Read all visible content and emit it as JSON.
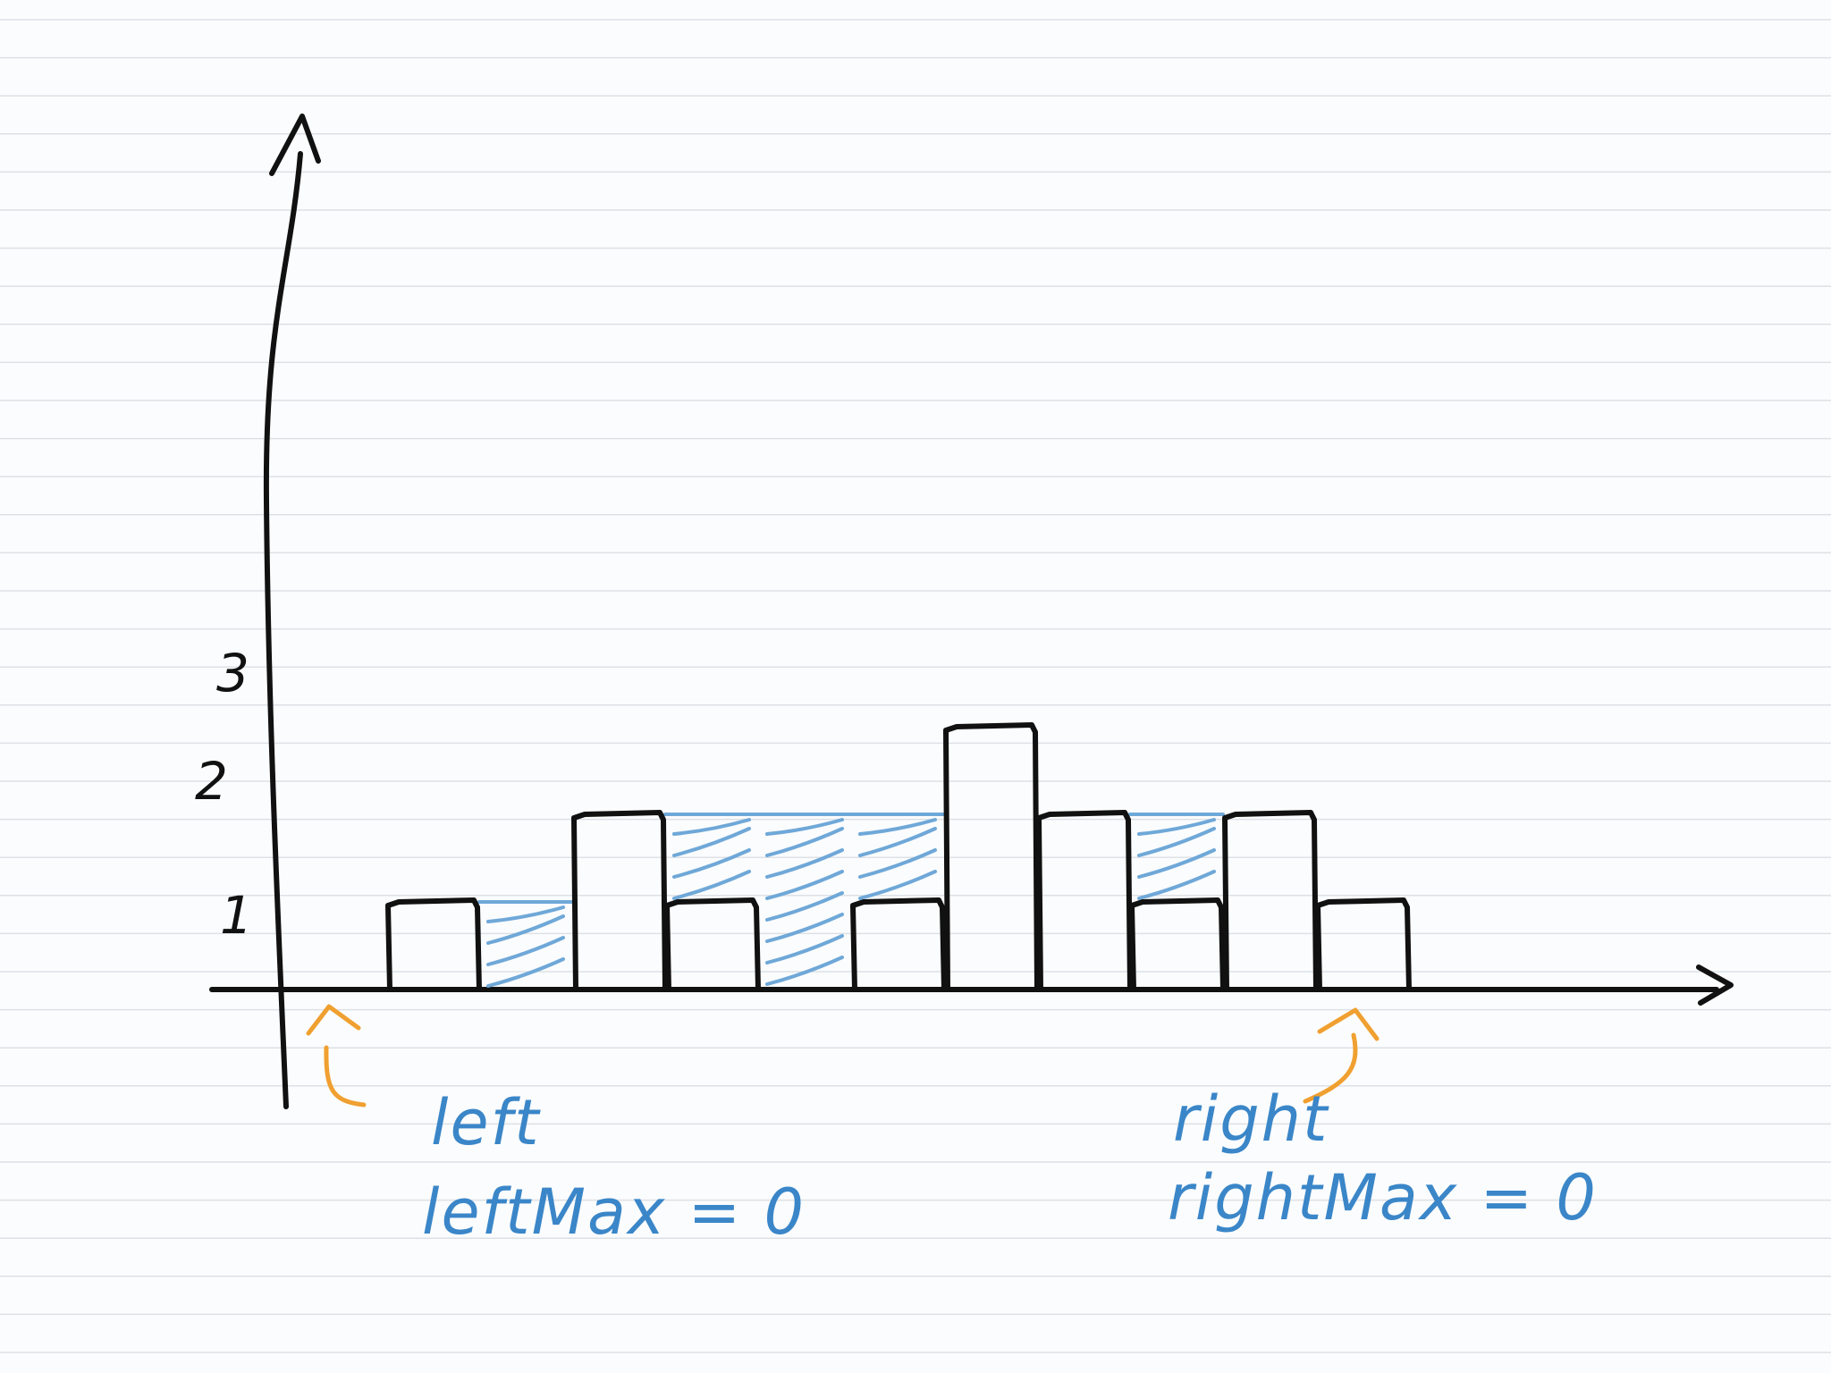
{
  "diagram": {
    "y_ticks": [
      "1",
      "2",
      "3"
    ],
    "bar_heights": [
      0,
      1,
      0,
      2,
      1,
      0,
      1,
      3,
      2,
      1,
      2,
      1
    ],
    "trapped_water": [
      0,
      0,
      1,
      0,
      1,
      2,
      1,
      0,
      0,
      1,
      0,
      0
    ],
    "pointers": {
      "left_name": "left",
      "left_max": "leftMax = 0",
      "right_name": "right",
      "right_max": "rightMax = 0"
    },
    "colors": {
      "background": "#fbfcfd",
      "ruled_lines": "#dde1e6",
      "ink": "#111111",
      "water_hatch": "#6fa8d8",
      "label_text": "#3a86c8",
      "pointer_arrows": "#f0a030"
    }
  }
}
